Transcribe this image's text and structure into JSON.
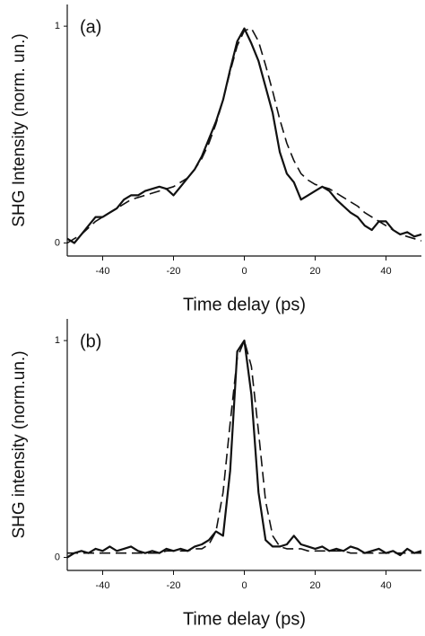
{
  "chart_data": [
    {
      "type": "line",
      "panel_label": "(a)",
      "x_label": "Time delay (ps)",
      "y_label": "SHG Intensity (norm. un.)",
      "xlim": [
        -50,
        50
      ],
      "ylim": [
        -0.06,
        1.1
      ],
      "xticks": [
        -40,
        -20,
        0,
        20,
        40
      ],
      "yticks": [
        0,
        1
      ],
      "x": [
        -50,
        -48,
        -46,
        -44,
        -42,
        -40,
        -38,
        -36,
        -34,
        -32,
        -30,
        -28,
        -26,
        -24,
        -22,
        -20,
        -18,
        -16,
        -14,
        -12,
        -10,
        -8,
        -6,
        -4,
        -2,
        0,
        2,
        4,
        6,
        8,
        10,
        12,
        14,
        16,
        18,
        20,
        22,
        24,
        26,
        28,
        30,
        32,
        34,
        36,
        38,
        40,
        42,
        44,
        46,
        48,
        50
      ],
      "series": [
        {
          "color": "#111111",
          "line_style": "solid",
          "values": [
            0.02,
            0.0,
            0.04,
            0.08,
            0.12,
            0.12,
            0.14,
            0.16,
            0.2,
            0.22,
            0.22,
            0.24,
            0.25,
            0.26,
            0.25,
            0.22,
            0.26,
            0.3,
            0.34,
            0.4,
            0.48,
            0.56,
            0.66,
            0.8,
            0.93,
            0.99,
            0.92,
            0.84,
            0.72,
            0.6,
            0.42,
            0.32,
            0.28,
            0.2,
            0.22,
            0.24,
            0.26,
            0.24,
            0.2,
            0.17,
            0.14,
            0.12,
            0.08,
            0.06,
            0.1,
            0.1,
            0.06,
            0.04,
            0.05,
            0.03,
            0.04
          ]
        },
        {
          "color": "#111111",
          "line_style": "dashed",
          "values": [
            0.0,
            0.02,
            0.04,
            0.07,
            0.1,
            0.12,
            0.14,
            0.16,
            0.18,
            0.2,
            0.21,
            0.22,
            0.23,
            0.24,
            0.25,
            0.26,
            0.28,
            0.3,
            0.34,
            0.39,
            0.46,
            0.55,
            0.66,
            0.79,
            0.91,
            0.98,
            0.99,
            0.93,
            0.82,
            0.7,
            0.57,
            0.46,
            0.38,
            0.32,
            0.29,
            0.27,
            0.26,
            0.25,
            0.23,
            0.21,
            0.19,
            0.17,
            0.14,
            0.12,
            0.1,
            0.08,
            0.06,
            0.04,
            0.03,
            0.02,
            0.01
          ]
        }
      ]
    },
    {
      "type": "line",
      "panel_label": "(b)",
      "x_label": "Time delay (ps)",
      "y_label": "SHG intensity (norm.un.)",
      "xlim": [
        -50,
        50
      ],
      "ylim": [
        -0.06,
        1.1
      ],
      "xticks": [
        -40,
        -20,
        0,
        20,
        40
      ],
      "yticks": [
        0,
        1
      ],
      "x": [
        -50,
        -48,
        -46,
        -44,
        -42,
        -40,
        -38,
        -36,
        -34,
        -32,
        -30,
        -28,
        -26,
        -24,
        -22,
        -20,
        -18,
        -16,
        -14,
        -12,
        -10,
        -8,
        -6,
        -4,
        -2,
        0,
        2,
        4,
        6,
        8,
        10,
        12,
        14,
        16,
        18,
        20,
        22,
        24,
        26,
        28,
        30,
        32,
        34,
        36,
        38,
        40,
        42,
        44,
        46,
        48,
        50
      ],
      "series": [
        {
          "color": "#111111",
          "line_style": "solid",
          "values": [
            0.0,
            0.02,
            0.03,
            0.02,
            0.04,
            0.03,
            0.05,
            0.03,
            0.04,
            0.05,
            0.03,
            0.02,
            0.03,
            0.02,
            0.04,
            0.03,
            0.04,
            0.03,
            0.05,
            0.06,
            0.08,
            0.12,
            0.1,
            0.4,
            0.95,
            1.0,
            0.75,
            0.3,
            0.08,
            0.05,
            0.05,
            0.06,
            0.1,
            0.06,
            0.05,
            0.04,
            0.05,
            0.03,
            0.04,
            0.03,
            0.05,
            0.04,
            0.02,
            0.03,
            0.04,
            0.02,
            0.03,
            0.01,
            0.04,
            0.02,
            0.03
          ]
        },
        {
          "color": "#111111",
          "line_style": "dashed",
          "values": [
            0.02,
            0.02,
            0.02,
            0.02,
            0.02,
            0.02,
            0.02,
            0.02,
            0.02,
            0.02,
            0.02,
            0.02,
            0.02,
            0.02,
            0.03,
            0.03,
            0.03,
            0.03,
            0.04,
            0.04,
            0.06,
            0.12,
            0.3,
            0.62,
            0.92,
            1.0,
            0.88,
            0.58,
            0.26,
            0.1,
            0.05,
            0.04,
            0.04,
            0.04,
            0.03,
            0.03,
            0.03,
            0.03,
            0.03,
            0.03,
            0.02,
            0.02,
            0.02,
            0.02,
            0.02,
            0.02,
            0.02,
            0.02,
            0.02,
            0.02,
            0.02
          ]
        }
      ]
    }
  ]
}
